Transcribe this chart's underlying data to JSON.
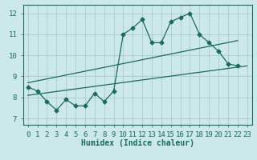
{
  "title": "",
  "xlabel": "Humidex (Indice chaleur)",
  "ylabel": "",
  "bg_color": "#cce8e8",
  "grid_color": "#b0d0d0",
  "line_color": "#1a6b5a",
  "x_ticks": [
    0,
    1,
    2,
    3,
    4,
    5,
    6,
    7,
    8,
    9,
    10,
    11,
    12,
    13,
    14,
    15,
    16,
    17,
    18,
    19,
    20,
    21,
    22,
    23
  ],
  "y_ticks": [
    7,
    8,
    9,
    10,
    11,
    12
  ],
  "xlim": [
    -0.5,
    23.5
  ],
  "ylim": [
    6.7,
    12.4
  ],
  "main_x": [
    0,
    1,
    2,
    3,
    4,
    5,
    6,
    7,
    8,
    9,
    10,
    11,
    12,
    13,
    14,
    15,
    16,
    17,
    18,
    19,
    20,
    21,
    22
  ],
  "main_y": [
    8.5,
    8.3,
    7.8,
    7.4,
    7.9,
    7.6,
    7.6,
    8.2,
    7.8,
    8.3,
    11.0,
    11.3,
    11.7,
    10.6,
    10.6,
    11.6,
    11.8,
    12.0,
    11.0,
    10.6,
    10.2,
    9.6,
    9.5
  ],
  "upper_line_x": [
    0,
    22
  ],
  "upper_line_y": [
    8.7,
    10.7
  ],
  "lower_line_x": [
    0,
    23
  ],
  "lower_line_y": [
    8.1,
    9.5
  ],
  "font_size": 7,
  "tick_font_size": 6.5
}
